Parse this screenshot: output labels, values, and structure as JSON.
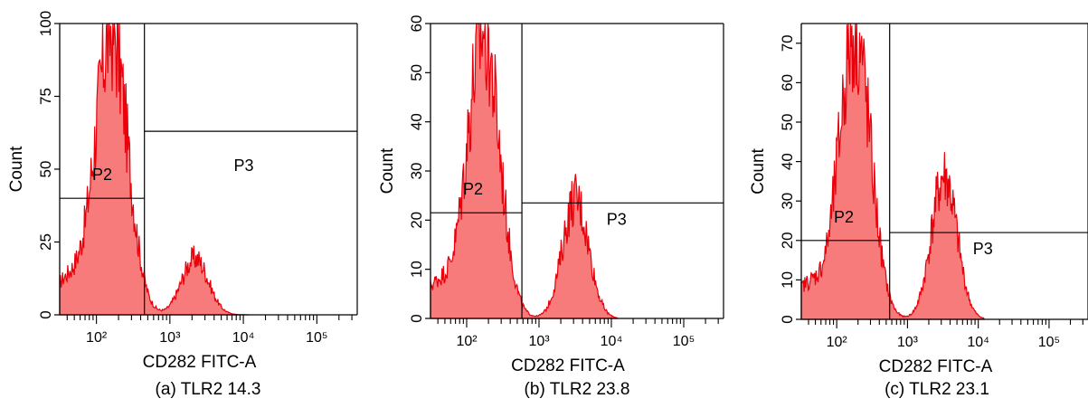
{
  "chart_data": [
    {
      "type": "histogram",
      "xlabel": "CD282 FITC-A",
      "ylabel": "Count",
      "x_scale": "log",
      "x_ticks": [
        "10²",
        "10³",
        "10⁴",
        "10⁵"
      ],
      "ylim": [
        0,
        100
      ],
      "y_ticks": [
        0,
        25,
        50,
        75,
        100
      ],
      "gates": [
        {
          "label": "P2",
          "x_range": [
            30,
            450
          ],
          "count_level": 40
        },
        {
          "label": "P3",
          "x_range": [
            450,
            200000
          ],
          "count_level": 63
        }
      ],
      "peaks": [
        {
          "center": 160,
          "max_count": 100
        },
        {
          "center": 2200,
          "max_count": 20
        }
      ],
      "caption": "(a) TLR2 14.3",
      "fill_color": "#f77b7b",
      "line_color": "#e8000b"
    },
    {
      "type": "histogram",
      "xlabel": "CD282 FITC-A",
      "ylabel": "Count",
      "x_scale": "log",
      "x_ticks": [
        "10²",
        "10³",
        "10⁴",
        "10⁵"
      ],
      "ylim": [
        0,
        60
      ],
      "y_ticks": [
        0,
        10,
        20,
        30,
        40,
        50,
        60
      ],
      "gates": [
        {
          "label": "P2",
          "x_range": [
            30,
            580
          ],
          "count_level": 21.5
        },
        {
          "label": "P3",
          "x_range": [
            580,
            200000
          ],
          "count_level": 23.5
        }
      ],
      "peaks": [
        {
          "center": 170,
          "max_count": 60
        },
        {
          "center": 3200,
          "max_count": 25
        }
      ],
      "caption": "(b) TLR2 23.8",
      "fill_color": "#f77b7b",
      "line_color": "#e8000b"
    },
    {
      "type": "histogram",
      "xlabel": "CD282 FITC-A",
      "ylabel": "Count",
      "x_scale": "log",
      "x_ticks": [
        "10²",
        "10³",
        "10⁴",
        "10⁵"
      ],
      "ylim": [
        0,
        75
      ],
      "y_ticks": [
        0,
        10,
        20,
        30,
        40,
        50,
        60,
        70
      ],
      "gates": [
        {
          "label": "P2",
          "x_range": [
            30,
            560
          ],
          "count_level": 20
        },
        {
          "label": "P3",
          "x_range": [
            560,
            200000
          ],
          "count_level": 22
        }
      ],
      "peaks": [
        {
          "center": 180,
          "max_count": 75
        },
        {
          "center": 3300,
          "max_count": 37
        }
      ],
      "caption": "(c) TLR2  23.1",
      "fill_color": "#f77b7b",
      "line_color": "#e8000b"
    }
  ]
}
